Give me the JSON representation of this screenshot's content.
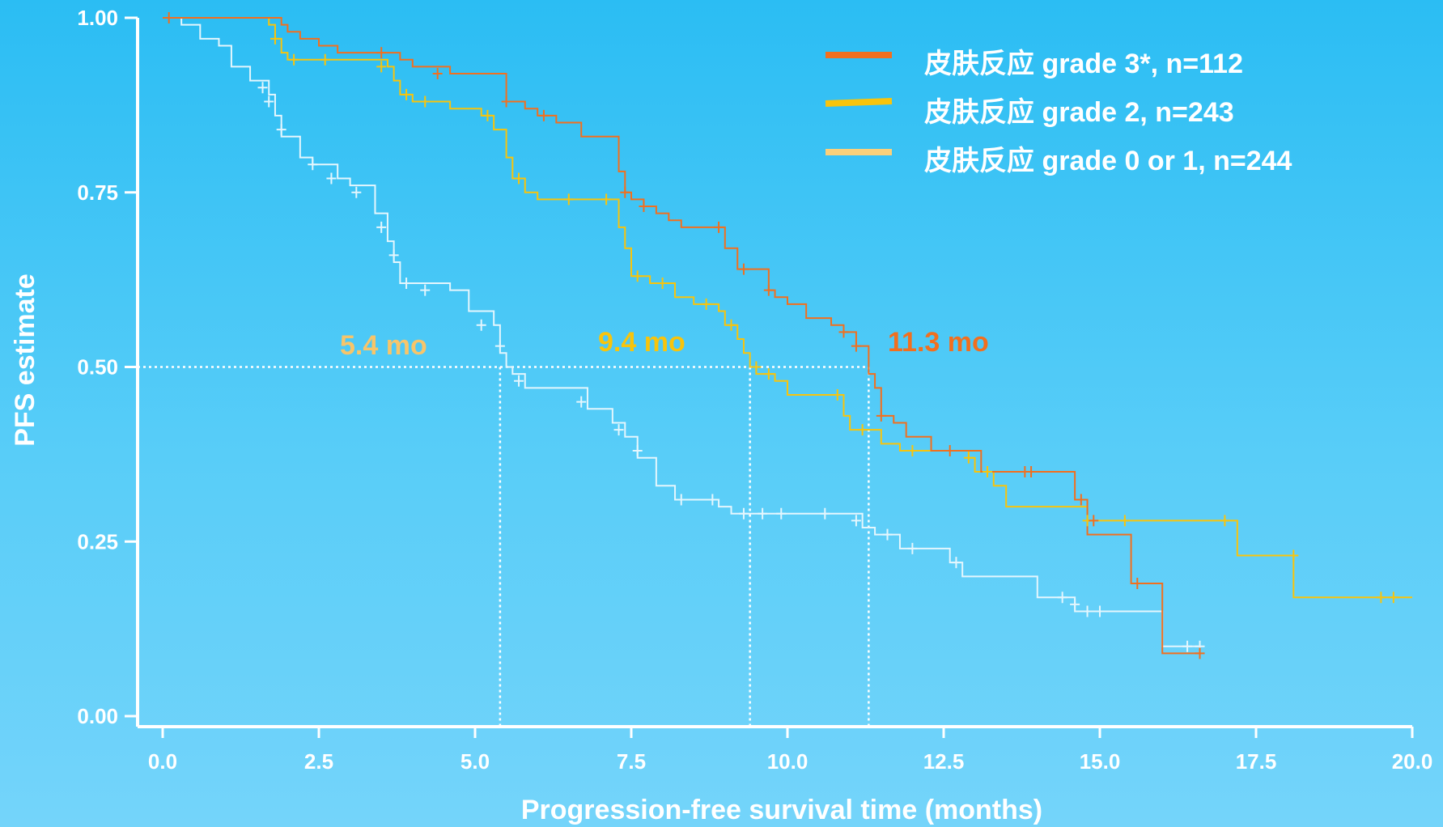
{
  "chart_data": {
    "type": "line",
    "subtype": "kaplan-meier step curves",
    "title": "",
    "xlabel": "Progression-free survival time (months)",
    "ylabel": "PFS estimate",
    "xlim": [
      0,
      20
    ],
    "ylim": [
      0,
      1
    ],
    "xticks": [
      "0.0",
      "2.5",
      "5.0",
      "7.5",
      "10.0",
      "12.5",
      "15.0",
      "17.5",
      "20.0"
    ],
    "yticks": [
      "0.00",
      "0.25",
      "0.50",
      "0.75",
      "1.00"
    ],
    "grid": false,
    "legend_position": "top-right",
    "reference_line_y": 0.5,
    "series": [
      {
        "name": "皮肤反应 grade 3*, n=112",
        "color": "#f26f1e",
        "median": 11.3,
        "median_label": "11.3 mo",
        "points": [
          [
            0,
            1.0
          ],
          [
            1.9,
            1.0
          ],
          [
            1.9,
            0.99
          ],
          [
            2.0,
            0.98
          ],
          [
            2.2,
            0.97
          ],
          [
            2.5,
            0.96
          ],
          [
            2.8,
            0.95
          ],
          [
            3.5,
            0.95
          ],
          [
            3.8,
            0.94
          ],
          [
            4.0,
            0.93
          ],
          [
            4.6,
            0.92
          ],
          [
            5.4,
            0.92
          ],
          [
            5.5,
            0.88
          ],
          [
            5.8,
            0.87
          ],
          [
            6.0,
            0.86
          ],
          [
            6.3,
            0.85
          ],
          [
            6.7,
            0.83
          ],
          [
            7.2,
            0.83
          ],
          [
            7.3,
            0.78
          ],
          [
            7.4,
            0.75
          ],
          [
            7.5,
            0.74
          ],
          [
            7.7,
            0.73
          ],
          [
            7.9,
            0.72
          ],
          [
            8.1,
            0.71
          ],
          [
            8.3,
            0.7
          ],
          [
            8.9,
            0.7
          ],
          [
            9.0,
            0.67
          ],
          [
            9.2,
            0.64
          ],
          [
            9.6,
            0.64
          ],
          [
            9.7,
            0.61
          ],
          [
            9.8,
            0.6
          ],
          [
            10.0,
            0.59
          ],
          [
            10.3,
            0.57
          ],
          [
            10.7,
            0.56
          ],
          [
            10.9,
            0.55
          ],
          [
            11.1,
            0.53
          ],
          [
            11.3,
            0.53
          ],
          [
            11.3,
            0.49
          ],
          [
            11.4,
            0.47
          ],
          [
            11.5,
            0.43
          ],
          [
            11.7,
            0.42
          ],
          [
            11.9,
            0.4
          ],
          [
            12.2,
            0.4
          ],
          [
            12.3,
            0.38
          ],
          [
            12.8,
            0.38
          ],
          [
            13.1,
            0.35
          ],
          [
            14.6,
            0.35
          ],
          [
            14.6,
            0.31
          ],
          [
            14.8,
            0.31
          ],
          [
            14.8,
            0.26
          ],
          [
            15.5,
            0.26
          ],
          [
            15.5,
            0.19
          ],
          [
            16.0,
            0.19
          ],
          [
            16.0,
            0.09
          ],
          [
            16.6,
            0.09
          ]
        ],
        "censored": [
          [
            0.1,
            1.0
          ],
          [
            3.5,
            0.95
          ],
          [
            4.4,
            0.92
          ],
          [
            5.5,
            0.88
          ],
          [
            6.1,
            0.86
          ],
          [
            7.4,
            0.75
          ],
          [
            7.7,
            0.73
          ],
          [
            8.9,
            0.7
          ],
          [
            9.3,
            0.64
          ],
          [
            9.7,
            0.61
          ],
          [
            10.9,
            0.55
          ],
          [
            11.1,
            0.53
          ],
          [
            11.5,
            0.43
          ],
          [
            12.6,
            0.38
          ],
          [
            13.8,
            0.35
          ],
          [
            13.9,
            0.35
          ],
          [
            14.7,
            0.31
          ],
          [
            14.9,
            0.28
          ],
          [
            15.6,
            0.19
          ],
          [
            16.6,
            0.09
          ]
        ]
      },
      {
        "name": "皮肤反应 grade 2, n=243",
        "color": "#f8c40c",
        "median": 9.4,
        "median_label": "9.4 mo",
        "points": [
          [
            0,
            1.0
          ],
          [
            1.7,
            0.99
          ],
          [
            1.8,
            0.97
          ],
          [
            1.9,
            0.95
          ],
          [
            2.0,
            0.94
          ],
          [
            2.5,
            0.94
          ],
          [
            3.6,
            0.93
          ],
          [
            3.7,
            0.91
          ],
          [
            3.8,
            0.89
          ],
          [
            4.0,
            0.88
          ],
          [
            4.5,
            0.88
          ],
          [
            4.6,
            0.87
          ],
          [
            5.1,
            0.86
          ],
          [
            5.3,
            0.84
          ],
          [
            5.5,
            0.8
          ],
          [
            5.6,
            0.77
          ],
          [
            5.8,
            0.75
          ],
          [
            6.0,
            0.74
          ],
          [
            6.7,
            0.74
          ],
          [
            7.2,
            0.74
          ],
          [
            7.3,
            0.7
          ],
          [
            7.4,
            0.67
          ],
          [
            7.5,
            0.63
          ],
          [
            7.8,
            0.62
          ],
          [
            8.2,
            0.6
          ],
          [
            8.5,
            0.59
          ],
          [
            8.9,
            0.58
          ],
          [
            9.0,
            0.56
          ],
          [
            9.2,
            0.54
          ],
          [
            9.3,
            0.52
          ],
          [
            9.4,
            0.5
          ],
          [
            9.5,
            0.49
          ],
          [
            9.8,
            0.48
          ],
          [
            10.0,
            0.46
          ],
          [
            10.7,
            0.46
          ],
          [
            10.9,
            0.43
          ],
          [
            11.0,
            0.41
          ],
          [
            11.4,
            0.41
          ],
          [
            11.5,
            0.39
          ],
          [
            11.8,
            0.38
          ],
          [
            12.2,
            0.38
          ],
          [
            12.8,
            0.38
          ],
          [
            12.9,
            0.37
          ],
          [
            13.0,
            0.35
          ],
          [
            13.3,
            0.33
          ],
          [
            13.5,
            0.3
          ],
          [
            14.8,
            0.3
          ],
          [
            14.8,
            0.28
          ],
          [
            17.2,
            0.28
          ],
          [
            17.2,
            0.23
          ],
          [
            18.1,
            0.23
          ],
          [
            18.1,
            0.17
          ],
          [
            20.0,
            0.17
          ]
        ],
        "censored": [
          [
            1.8,
            0.97
          ],
          [
            2.1,
            0.94
          ],
          [
            2.6,
            0.94
          ],
          [
            3.5,
            0.93
          ],
          [
            3.9,
            0.89
          ],
          [
            4.2,
            0.88
          ],
          [
            5.2,
            0.86
          ],
          [
            5.7,
            0.77
          ],
          [
            6.5,
            0.74
          ],
          [
            7.1,
            0.74
          ],
          [
            7.6,
            0.63
          ],
          [
            8.0,
            0.62
          ],
          [
            8.7,
            0.59
          ],
          [
            9.1,
            0.56
          ],
          [
            9.5,
            0.5
          ],
          [
            9.7,
            0.49
          ],
          [
            10.8,
            0.46
          ],
          [
            11.2,
            0.41
          ],
          [
            12.0,
            0.38
          ],
          [
            12.9,
            0.37
          ],
          [
            13.2,
            0.35
          ],
          [
            14.8,
            0.28
          ],
          [
            15.4,
            0.28
          ],
          [
            17.0,
            0.28
          ],
          [
            18.1,
            0.23
          ],
          [
            19.5,
            0.17
          ],
          [
            19.7,
            0.17
          ]
        ]
      },
      {
        "name": "皮肤反应 grade 0 or 1, n=244",
        "color": "#fbd07a",
        "line_color": "#e4f6fd",
        "median": 5.4,
        "median_label": "5.4 mo",
        "label_color": "#f7c56a",
        "points": [
          [
            0,
            1.0
          ],
          [
            0.3,
            0.99
          ],
          [
            0.6,
            0.97
          ],
          [
            0.9,
            0.96
          ],
          [
            1.1,
            0.93
          ],
          [
            1.4,
            0.91
          ],
          [
            1.7,
            0.89
          ],
          [
            1.8,
            0.86
          ],
          [
            1.9,
            0.83
          ],
          [
            2.2,
            0.8
          ],
          [
            2.4,
            0.79
          ],
          [
            2.8,
            0.77
          ],
          [
            3.0,
            0.76
          ],
          [
            3.4,
            0.72
          ],
          [
            3.6,
            0.68
          ],
          [
            3.7,
            0.65
          ],
          [
            3.8,
            0.62
          ],
          [
            4.6,
            0.61
          ],
          [
            4.9,
            0.58
          ],
          [
            5.3,
            0.56
          ],
          [
            5.4,
            0.52
          ],
          [
            5.5,
            0.5
          ],
          [
            5.6,
            0.49
          ],
          [
            5.8,
            0.47
          ],
          [
            6.6,
            0.47
          ],
          [
            6.8,
            0.44
          ],
          [
            7.2,
            0.42
          ],
          [
            7.4,
            0.4
          ],
          [
            7.6,
            0.37
          ],
          [
            7.9,
            0.33
          ],
          [
            8.2,
            0.31
          ],
          [
            8.9,
            0.3
          ],
          [
            9.1,
            0.29
          ],
          [
            11.1,
            0.29
          ],
          [
            11.2,
            0.27
          ],
          [
            11.4,
            0.26
          ],
          [
            11.7,
            0.26
          ],
          [
            11.8,
            0.24
          ],
          [
            12.5,
            0.24
          ],
          [
            12.6,
            0.22
          ],
          [
            12.8,
            0.2
          ],
          [
            14.0,
            0.2
          ],
          [
            14.0,
            0.17
          ],
          [
            14.4,
            0.17
          ],
          [
            14.6,
            0.15
          ],
          [
            16.0,
            0.15
          ],
          [
            16.0,
            0.1
          ],
          [
            16.6,
            0.1
          ]
        ],
        "censored": [
          [
            1.6,
            0.9
          ],
          [
            1.7,
            0.88
          ],
          [
            1.9,
            0.84
          ],
          [
            2.4,
            0.79
          ],
          [
            2.7,
            0.77
          ],
          [
            3.1,
            0.75
          ],
          [
            3.5,
            0.7
          ],
          [
            3.7,
            0.66
          ],
          [
            3.9,
            0.62
          ],
          [
            4.2,
            0.61
          ],
          [
            5.1,
            0.56
          ],
          [
            5.4,
            0.53
          ],
          [
            5.7,
            0.48
          ],
          [
            6.7,
            0.45
          ],
          [
            7.3,
            0.41
          ],
          [
            7.6,
            0.38
          ],
          [
            8.3,
            0.31
          ],
          [
            8.8,
            0.31
          ],
          [
            9.3,
            0.29
          ],
          [
            9.6,
            0.29
          ],
          [
            9.9,
            0.29
          ],
          [
            10.6,
            0.29
          ],
          [
            11.1,
            0.28
          ],
          [
            11.6,
            0.26
          ],
          [
            12.0,
            0.24
          ],
          [
            12.7,
            0.22
          ],
          [
            14.4,
            0.17
          ],
          [
            14.6,
            0.16
          ],
          [
            14.8,
            0.15
          ],
          [
            15.0,
            0.15
          ],
          [
            16.4,
            0.1
          ],
          [
            16.6,
            0.1
          ]
        ]
      }
    ]
  }
}
